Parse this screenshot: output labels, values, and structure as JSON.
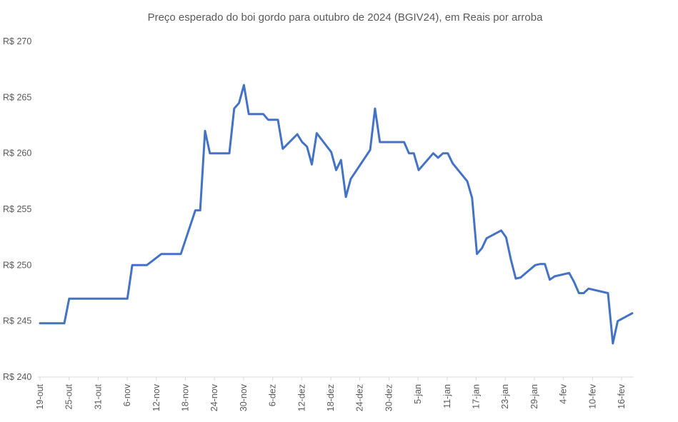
{
  "chart_data": {
    "type": "line",
    "title": "Preço esperado do boi gordo para outubro de 2024 (BGIV24), em Reais por arroba",
    "xlabel": "",
    "ylabel": "",
    "ylim": [
      240,
      270
    ],
    "yticks": [
      240,
      245,
      250,
      255,
      260,
      265,
      270
    ],
    "ytick_prefix": "R$ ",
    "xticks": [
      "19-out",
      "25-out",
      "31-out",
      "6-nov",
      "12-nov",
      "18-nov",
      "24-nov",
      "30-nov",
      "6-dez",
      "12-dez",
      "18-dez",
      "24-dez",
      "30-dez",
      "5-jan",
      "11-jan",
      "17-jan",
      "23-jan",
      "29-jan",
      "4-fev",
      "10-fev",
      "16-fev"
    ],
    "grid": false,
    "line_color": "#4472C4",
    "series": [
      {
        "values": [
          [
            0,
            244.8
          ],
          [
            5,
            244.8
          ],
          [
            6,
            247
          ],
          [
            18,
            247
          ],
          [
            19,
            250
          ],
          [
            22,
            250
          ],
          [
            25,
            251
          ],
          [
            29,
            251
          ],
          [
            32,
            254.9
          ],
          [
            33,
            254.9
          ],
          [
            34,
            262
          ],
          [
            35,
            260
          ],
          [
            39,
            260
          ],
          [
            40,
            264
          ],
          [
            41,
            264.5
          ],
          [
            42,
            266.1
          ],
          [
            43,
            263.5
          ],
          [
            46,
            263.5
          ],
          [
            47,
            263
          ],
          [
            49,
            263
          ],
          [
            50,
            260.4
          ],
          [
            53,
            261.7
          ],
          [
            54,
            261
          ],
          [
            55,
            260.6
          ],
          [
            56,
            259
          ],
          [
            57,
            261.8
          ],
          [
            60,
            260.1
          ],
          [
            61,
            258.5
          ],
          [
            62,
            259.4
          ],
          [
            63,
            256.1
          ],
          [
            64,
            257.7
          ],
          [
            68,
            260.3
          ],
          [
            69,
            264
          ],
          [
            70,
            261
          ],
          [
            75,
            261
          ],
          [
            76,
            260
          ],
          [
            77,
            260
          ],
          [
            78,
            258.5
          ],
          [
            81,
            260
          ],
          [
            82,
            259.6
          ],
          [
            83,
            260
          ],
          [
            84,
            260
          ],
          [
            85,
            259.1
          ],
          [
            88,
            257.5
          ],
          [
            89,
            256
          ],
          [
            90,
            251
          ],
          [
            91,
            251.5
          ],
          [
            92,
            252.4
          ],
          [
            95,
            253.1
          ],
          [
            96,
            252.5
          ],
          [
            97,
            250.5
          ],
          [
            98,
            248.8
          ],
          [
            99,
            248.9
          ],
          [
            102,
            250
          ],
          [
            103,
            250.1
          ],
          [
            104,
            250.1
          ],
          [
            105,
            248.7
          ],
          [
            106,
            249
          ],
          [
            109,
            249.3
          ],
          [
            110,
            248.5
          ],
          [
            111,
            247.5
          ],
          [
            112,
            247.5
          ],
          [
            113,
            247.9
          ],
          [
            117,
            247.5
          ],
          [
            118,
            243
          ],
          [
            119,
            245
          ],
          [
            122,
            245.7
          ]
        ]
      }
    ]
  }
}
